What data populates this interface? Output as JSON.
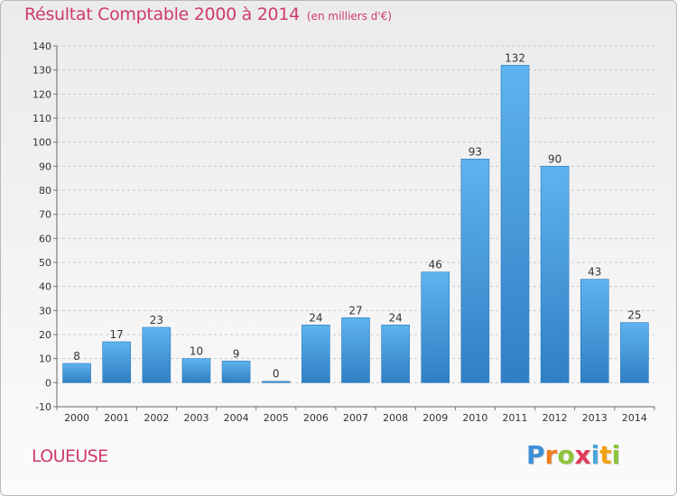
{
  "chart_data": {
    "type": "bar",
    "title": "Résultat Comptable 2000 à 2014",
    "subtitle": "(en milliers d'€)",
    "categories": [
      "2000",
      "2001",
      "2002",
      "2003",
      "2004",
      "2005",
      "2006",
      "2007",
      "2008",
      "2009",
      "2010",
      "2011",
      "2012",
      "2013",
      "2014"
    ],
    "values": [
      8,
      17,
      23,
      10,
      9,
      0,
      24,
      27,
      24,
      46,
      93,
      132,
      90,
      43,
      25
    ],
    "ylim": [
      -10,
      140
    ],
    "yticks": [
      -10,
      0,
      10,
      20,
      30,
      40,
      50,
      60,
      70,
      80,
      90,
      100,
      110,
      120,
      130,
      140
    ],
    "grid": true,
    "legend": "none",
    "bar_color": "#4fa4e4"
  },
  "footer": {
    "commune": "LOUEUSE",
    "logo_text": [
      "P",
      "r",
      "o",
      "x",
      "i",
      "t",
      "i"
    ]
  },
  "colors": {
    "accent": "#cf3a6f"
  }
}
